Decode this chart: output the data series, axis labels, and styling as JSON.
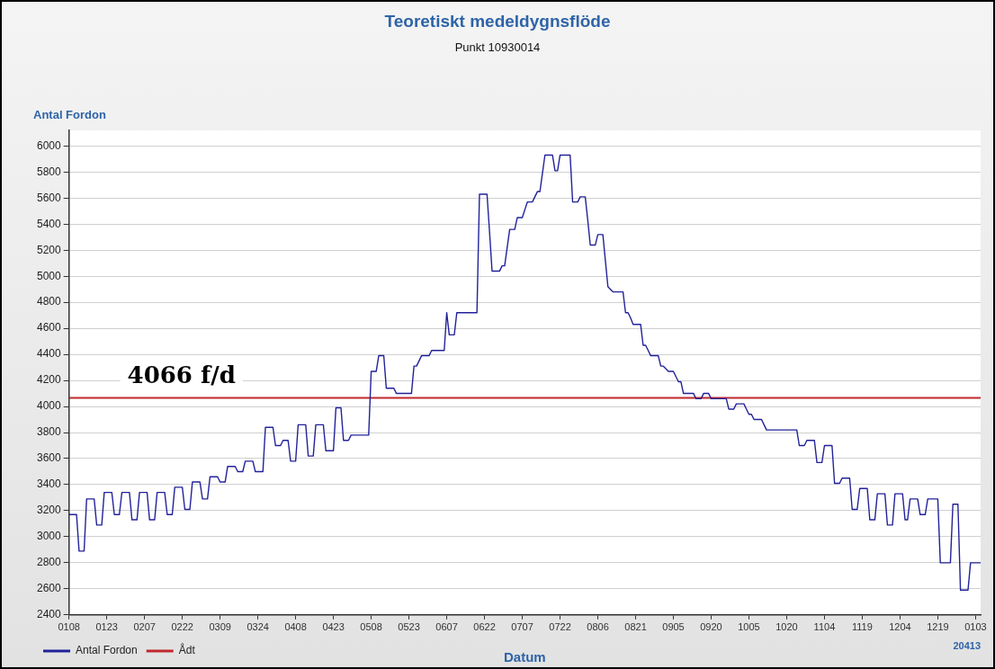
{
  "chart_data": {
    "type": "line",
    "title": "Teoretiskt medeldygnsflöde",
    "subtitle": "Punkt 10930014",
    "ylabel": "Antal Fordon",
    "xlabel": "Datum",
    "categories": [
      "0108",
      null,
      null,
      null,
      null,
      null,
      null,
      null,
      null,
      null,
      null,
      null,
      null,
      null,
      null,
      "0123",
      null,
      null,
      null,
      null,
      null,
      null,
      null,
      null,
      null,
      null,
      null,
      null,
      null,
      null,
      "0207",
      null,
      null,
      null,
      null,
      null,
      null,
      null,
      null,
      null,
      null,
      null,
      null,
      null,
      null,
      "0222",
      null,
      null,
      null,
      null,
      null,
      null,
      null,
      null,
      null,
      null,
      null,
      null,
      null,
      null,
      "0309",
      null,
      null,
      null,
      null,
      null,
      null,
      null,
      null,
      null,
      null,
      null,
      null,
      null,
      null,
      "0324",
      null,
      null,
      null,
      null,
      null,
      null,
      null,
      null,
      null,
      null,
      null,
      null,
      null,
      null,
      "0408",
      null,
      null,
      null,
      null,
      null,
      null,
      null,
      null,
      null,
      null,
      null,
      null,
      null,
      null,
      "0423",
      null,
      null,
      null,
      null,
      null,
      null,
      null,
      null,
      null,
      null,
      null,
      null,
      null,
      null,
      "0508",
      null,
      null,
      null,
      null,
      null,
      null,
      null,
      null,
      null,
      null,
      null,
      null,
      null,
      null,
      "0523",
      null,
      null,
      null,
      null,
      null,
      null,
      null,
      null,
      null,
      null,
      null,
      null,
      null,
      null,
      "0607",
      null,
      null,
      null,
      null,
      null,
      null,
      null,
      null,
      null,
      null,
      null,
      null,
      null,
      null,
      "0622",
      null,
      null,
      null,
      null,
      null,
      null,
      null,
      null,
      null,
      null,
      null,
      null,
      null,
      null,
      "0707",
      null,
      null,
      null,
      null,
      null,
      null,
      null,
      null,
      null,
      null,
      null,
      null,
      null,
      null,
      "0722",
      null,
      null,
      null,
      null,
      null,
      null,
      null,
      null,
      null,
      null,
      null,
      null,
      null,
      null,
      "0806",
      null,
      null,
      null,
      null,
      null,
      null,
      null,
      null,
      null,
      null,
      null,
      null,
      null,
      null,
      "0821",
      null,
      null,
      null,
      null,
      null,
      null,
      null,
      null,
      null,
      null,
      null,
      null,
      null,
      null,
      "0905",
      null,
      null,
      null,
      null,
      null,
      null,
      null,
      null,
      null,
      null,
      null,
      null,
      null,
      null,
      "0920",
      null,
      null,
      null,
      null,
      null,
      null,
      null,
      null,
      null,
      null,
      null,
      null,
      null,
      null,
      "1005",
      null,
      null,
      null,
      null,
      null,
      null,
      null,
      null,
      null,
      null,
      null,
      null,
      null,
      null,
      "1020",
      null,
      null,
      null,
      null,
      null,
      null,
      null,
      null,
      null,
      null,
      null,
      null,
      null,
      null,
      "1104",
      null,
      null,
      null,
      null,
      null,
      null,
      null,
      null,
      null,
      null,
      null,
      null,
      null,
      null,
      "1119",
      null,
      null,
      null,
      null,
      null,
      null,
      null,
      null,
      null,
      null,
      null,
      null,
      null,
      null,
      "1204",
      null,
      null,
      null,
      null,
      null,
      null,
      null,
      null,
      null,
      null,
      null,
      null,
      null,
      null,
      "1219",
      null,
      null,
      null,
      null,
      null,
      null,
      null,
      null,
      null,
      null,
      null,
      null,
      null,
      null,
      "0103",
      null,
      null
    ],
    "series": [
      {
        "name": "Antal Fordon",
        "color": "#22229a",
        "values": [
          3170,
          3170,
          3170,
          3170,
          2890,
          2890,
          2890,
          3290,
          3290,
          3290,
          3290,
          3090,
          3090,
          3090,
          3340,
          3340,
          3340,
          3340,
          3170,
          3170,
          3170,
          3340,
          3340,
          3340,
          3340,
          3130,
          3130,
          3130,
          3340,
          3340,
          3340,
          3340,
          3130,
          3130,
          3130,
          3340,
          3340,
          3340,
          3340,
          3170,
          3170,
          3170,
          3380,
          3380,
          3380,
          3380,
          3210,
          3210,
          3210,
          3420,
          3420,
          3420,
          3420,
          3290,
          3290,
          3290,
          3460,
          3460,
          3460,
          3460,
          3420,
          3420,
          3420,
          3540,
          3540,
          3540,
          3540,
          3500,
          3500,
          3500,
          3580,
          3580,
          3580,
          3580,
          3500,
          3500,
          3500,
          3500,
          3840,
          3840,
          3840,
          3840,
          3700,
          3700,
          3700,
          3740,
          3740,
          3740,
          3580,
          3580,
          3580,
          3860,
          3860,
          3860,
          3860,
          3620,
          3620,
          3620,
          3860,
          3860,
          3860,
          3860,
          3660,
          3660,
          3660,
          3660,
          3990,
          3990,
          3990,
          3740,
          3740,
          3740,
          3780,
          3780,
          3780,
          3780,
          3780,
          3780,
          3780,
          3780,
          4270,
          4270,
          4270,
          4390,
          4390,
          4390,
          4140,
          4140,
          4140,
          4140,
          4100,
          4100,
          4100,
          4100,
          4100,
          4100,
          4100,
          4310,
          4310,
          4350,
          4390,
          4390,
          4390,
          4390,
          4430,
          4430,
          4430,
          4430,
          4430,
          4430,
          4720,
          4550,
          4550,
          4550,
          4720,
          4720,
          4720,
          4720,
          4720,
          4720,
          4720,
          4720,
          4720,
          5630,
          5630,
          5630,
          5630,
          5340,
          5040,
          5040,
          5040,
          5040,
          5080,
          5080,
          5220,
          5360,
          5360,
          5360,
          5450,
          5450,
          5450,
          5510,
          5570,
          5570,
          5570,
          5610,
          5650,
          5650,
          5790,
          5930,
          5930,
          5930,
          5930,
          5810,
          5810,
          5930,
          5930,
          5930,
          5930,
          5930,
          5570,
          5570,
          5570,
          5610,
          5610,
          5610,
          5430,
          5240,
          5240,
          5240,
          5320,
          5320,
          5320,
          5120,
          4920,
          4900,
          4880,
          4880,
          4880,
          4880,
          4880,
          4720,
          4720,
          4680,
          4630,
          4630,
          4630,
          4630,
          4470,
          4470,
          4430,
          4390,
          4390,
          4390,
          4390,
          4310,
          4310,
          4290,
          4270,
          4270,
          4270,
          4230,
          4190,
          4190,
          4100,
          4100,
          4100,
          4100,
          4100,
          4060,
          4060,
          4060,
          4100,
          4100,
          4100,
          4060,
          4060,
          4060,
          4060,
          4060,
          4060,
          4060,
          3980,
          3980,
          3980,
          4020,
          4020,
          4020,
          4020,
          3980,
          3940,
          3940,
          3900,
          3900,
          3900,
          3900,
          3860,
          3820,
          3820,
          3820,
          3820,
          3820,
          3820,
          3820,
          3820,
          3820,
          3820,
          3820,
          3820,
          3820,
          3700,
          3700,
          3700,
          3740,
          3740,
          3740,
          3740,
          3570,
          3570,
          3570,
          3700,
          3700,
          3700,
          3700,
          3410,
          3410,
          3410,
          3450,
          3450,
          3450,
          3450,
          3210,
          3210,
          3210,
          3370,
          3370,
          3370,
          3370,
          3130,
          3130,
          3130,
          3330,
          3330,
          3330,
          3330,
          3090,
          3090,
          3090,
          3330,
          3330,
          3330,
          3330,
          3130,
          3130,
          3290,
          3290,
          3290,
          3290,
          3170,
          3170,
          3170,
          3290,
          3290,
          3290,
          3290,
          3290,
          2800,
          2800,
          2800,
          2800,
          2800,
          3250,
          3250,
          3250,
          2590,
          2590,
          2590,
          2590,
          2800,
          2800,
          2800,
          2800,
          2800
        ]
      }
    ],
    "ref_lines": [
      {
        "axis": "y",
        "value": 4066,
        "label": "Ådt",
        "color": "#c0282d"
      }
    ],
    "annotations": [
      {
        "text": "4066 f/d",
        "y": 4066
      },
      "20413"
    ],
    "ylim": [
      2400,
      6120
    ],
    "yticks": [
      2400,
      2600,
      2800,
      3000,
      3200,
      3400,
      3600,
      3800,
      4000,
      4200,
      4400,
      4600,
      4800,
      5000,
      5200,
      5400,
      5600,
      5800,
      6000
    ],
    "grid": "y",
    "legend": "bottom left",
    "marker": "none",
    "line_style": "solid"
  }
}
